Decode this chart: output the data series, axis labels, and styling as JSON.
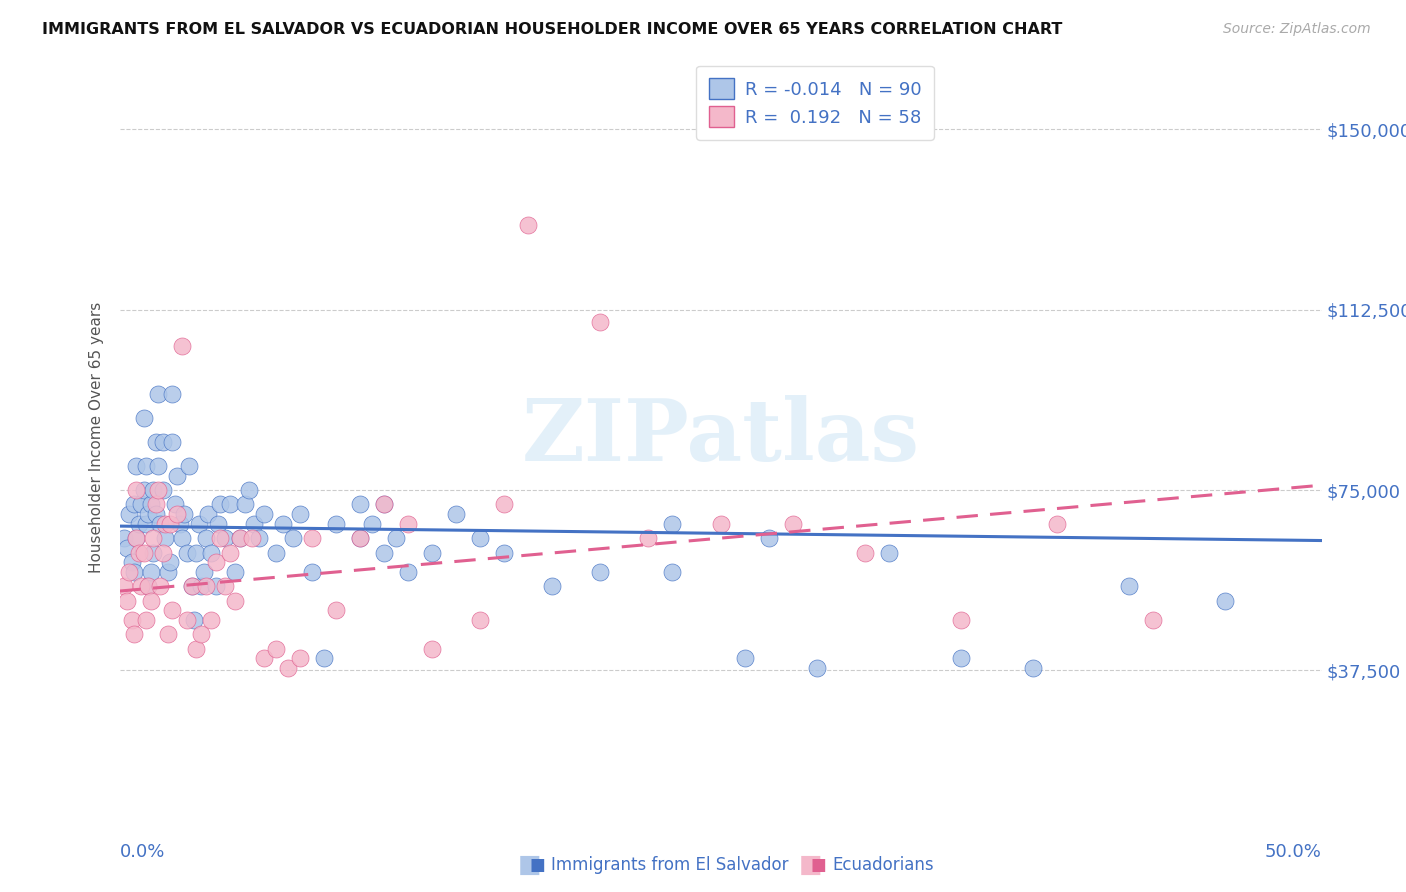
{
  "title": "IMMIGRANTS FROM EL SALVADOR VS ECUADORIAN HOUSEHOLDER INCOME OVER 65 YEARS CORRELATION CHART",
  "source": "Source: ZipAtlas.com",
  "ylabel": "Householder Income Over 65 years",
  "y_ticks": [
    37500,
    75000,
    112500,
    150000
  ],
  "y_tick_labels": [
    "$37,500",
    "$75,000",
    "$112,500",
    "$150,000"
  ],
  "xmin": 0.0,
  "xmax": 0.5,
  "ymin": 10000,
  "ymax": 162000,
  "legend_r1": "-0.014",
  "legend_n1": "90",
  "legend_r2": "0.192",
  "legend_n2": "58",
  "color_blue": "#aec6e8",
  "color_pink": "#f4b8ca",
  "line_blue": "#4472c4",
  "line_pink": "#e06090",
  "watermark": "ZIPatlas",
  "blue_scatter_x": [
    0.002,
    0.003,
    0.004,
    0.005,
    0.006,
    0.006,
    0.007,
    0.007,
    0.008,
    0.009,
    0.01,
    0.01,
    0.011,
    0.011,
    0.012,
    0.012,
    0.013,
    0.013,
    0.014,
    0.014,
    0.015,
    0.015,
    0.016,
    0.016,
    0.017,
    0.018,
    0.018,
    0.019,
    0.02,
    0.021,
    0.022,
    0.022,
    0.023,
    0.024,
    0.025,
    0.026,
    0.027,
    0.028,
    0.029,
    0.03,
    0.031,
    0.032,
    0.033,
    0.034,
    0.035,
    0.036,
    0.037,
    0.038,
    0.04,
    0.041,
    0.042,
    0.044,
    0.046,
    0.048,
    0.05,
    0.052,
    0.054,
    0.056,
    0.058,
    0.06,
    0.065,
    0.068,
    0.072,
    0.075,
    0.08,
    0.085,
    0.09,
    0.1,
    0.11,
    0.12,
    0.13,
    0.14,
    0.15,
    0.16,
    0.18,
    0.2,
    0.23,
    0.26,
    0.29,
    0.32,
    0.35,
    0.38,
    0.42,
    0.46,
    0.1,
    0.105,
    0.11,
    0.115,
    0.23,
    0.27
  ],
  "blue_scatter_y": [
    65000,
    63000,
    70000,
    60000,
    58000,
    72000,
    65000,
    80000,
    68000,
    72000,
    75000,
    90000,
    68000,
    80000,
    55000,
    70000,
    58000,
    72000,
    62000,
    75000,
    70000,
    85000,
    80000,
    95000,
    68000,
    75000,
    85000,
    65000,
    58000,
    60000,
    85000,
    95000,
    72000,
    78000,
    68000,
    65000,
    70000,
    62000,
    80000,
    55000,
    48000,
    62000,
    68000,
    55000,
    58000,
    65000,
    70000,
    62000,
    55000,
    68000,
    72000,
    65000,
    72000,
    58000,
    65000,
    72000,
    75000,
    68000,
    65000,
    70000,
    62000,
    68000,
    65000,
    70000,
    58000,
    40000,
    68000,
    72000,
    62000,
    58000,
    62000,
    70000,
    65000,
    62000,
    55000,
    58000,
    58000,
    40000,
    38000,
    62000,
    40000,
    38000,
    55000,
    52000,
    65000,
    68000,
    72000,
    65000,
    68000,
    65000
  ],
  "pink_scatter_x": [
    0.002,
    0.003,
    0.004,
    0.005,
    0.006,
    0.007,
    0.007,
    0.008,
    0.009,
    0.01,
    0.011,
    0.012,
    0.013,
    0.014,
    0.015,
    0.016,
    0.017,
    0.018,
    0.019,
    0.02,
    0.021,
    0.022,
    0.024,
    0.026,
    0.028,
    0.03,
    0.032,
    0.034,
    0.036,
    0.038,
    0.04,
    0.042,
    0.044,
    0.046,
    0.048,
    0.05,
    0.055,
    0.06,
    0.065,
    0.07,
    0.075,
    0.08,
    0.09,
    0.1,
    0.11,
    0.12,
    0.13,
    0.15,
    0.16,
    0.17,
    0.2,
    0.22,
    0.25,
    0.28,
    0.31,
    0.35,
    0.39,
    0.43
  ],
  "pink_scatter_y": [
    55000,
    52000,
    58000,
    48000,
    45000,
    65000,
    75000,
    62000,
    55000,
    62000,
    48000,
    55000,
    52000,
    65000,
    72000,
    75000,
    55000,
    62000,
    68000,
    45000,
    68000,
    50000,
    70000,
    105000,
    48000,
    55000,
    42000,
    45000,
    55000,
    48000,
    60000,
    65000,
    55000,
    62000,
    52000,
    65000,
    65000,
    40000,
    42000,
    38000,
    40000,
    65000,
    50000,
    65000,
    72000,
    68000,
    42000,
    48000,
    72000,
    130000,
    110000,
    65000,
    68000,
    68000,
    62000,
    48000,
    68000,
    48000
  ],
  "blue_line_x": [
    0.0,
    0.5
  ],
  "blue_line_y": [
    67500,
    64500
  ],
  "pink_line_x": [
    0.0,
    0.5
  ],
  "pink_line_y": [
    54000,
    76000
  ],
  "bottom_legend": [
    {
      "label": "Immigrants from El Salvador",
      "color_face": "#aec6e8",
      "color_edge": "#4472c4"
    },
    {
      "label": "Ecuadorians",
      "color_face": "#f4b8ca",
      "color_edge": "#e06090"
    }
  ]
}
